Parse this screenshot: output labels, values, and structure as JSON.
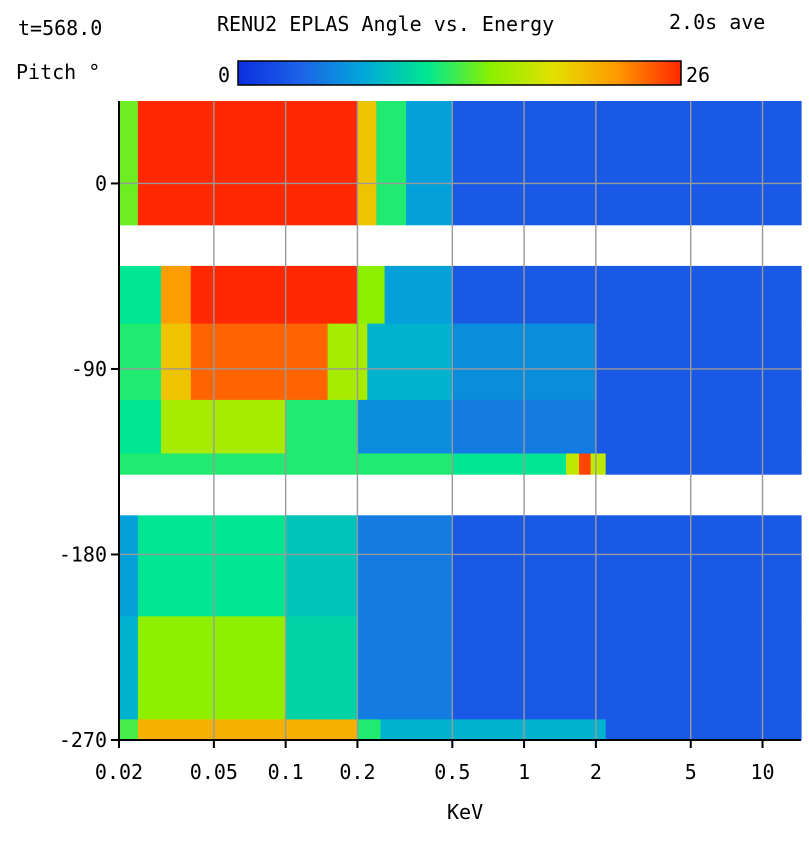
{
  "header": {
    "time": "t=568.0",
    "title": "RENU2 EPLAS Angle vs. Energy",
    "average": "2.0s ave",
    "ylabel": "Pitch °"
  },
  "colorbar": {
    "min_label": "0",
    "max_label": "26",
    "stops": [
      "#0b2ee0",
      "#1d63e8",
      "#00a8d8",
      "#00e890",
      "#8cf000",
      "#e4e000",
      "#ff9800",
      "#ff2800"
    ]
  },
  "chart_data": {
    "type": "heatmap",
    "title": "RENU2 EPLAS Angle vs. Energy",
    "xlabel": "KeV",
    "ylabel": "Pitch °",
    "x_scale": "log",
    "xlim": [
      0.02,
      14.5
    ],
    "ylim": [
      -270,
      40
    ],
    "x_ticks": [
      0.02,
      0.05,
      0.1,
      0.2,
      0.5,
      1,
      2,
      5,
      10
    ],
    "x_tick_labels": [
      "0.02",
      "0.05",
      "0.1",
      "0.2",
      "0.5",
      "1",
      "2",
      "5",
      "10"
    ],
    "y_ticks": [
      0,
      -90,
      -180,
      -270
    ],
    "y_tick_labels": [
      "0",
      "-90",
      "-180",
      "-270"
    ],
    "grid": true,
    "color_range": [
      0,
      26
    ],
    "colormap": "rainbow (blue to red)",
    "gaps": [
      [
        -40,
        -20
      ],
      [
        -161,
        -141
      ]
    ],
    "bands": [
      {
        "pitch_range": [
          -20,
          40
        ],
        "columns": [
          {
            "to_kev": 0.024,
            "value": 14
          },
          {
            "to_kev": 0.2,
            "value": 26
          },
          {
            "to_kev": 0.24,
            "value": 20
          },
          {
            "to_kev": 0.32,
            "value": 12
          },
          {
            "to_kev": 0.5,
            "value": 7
          },
          {
            "to_kev": 14.5,
            "value": 3
          }
        ]
      },
      {
        "pitch_range": [
          -68,
          -40
        ],
        "columns": [
          {
            "to_kev": 0.03,
            "value": 11
          },
          {
            "to_kev": 0.04,
            "value": 22
          },
          {
            "to_kev": 0.2,
            "value": 26
          },
          {
            "to_kev": 0.26,
            "value": 15
          },
          {
            "to_kev": 0.5,
            "value": 7
          },
          {
            "to_kev": 14.5,
            "value": 3
          }
        ]
      },
      {
        "pitch_range": [
          -105,
          -68
        ],
        "columns": [
          {
            "to_kev": 0.03,
            "value": 12
          },
          {
            "to_kev": 0.04,
            "value": 20
          },
          {
            "to_kev": 0.15,
            "value": 24
          },
          {
            "to_kev": 0.22,
            "value": 16
          },
          {
            "to_kev": 0.5,
            "value": 8
          },
          {
            "to_kev": 2.0,
            "value": 6
          },
          {
            "to_kev": 14.5,
            "value": 3
          }
        ]
      },
      {
        "pitch_range": [
          -131,
          -105
        ],
        "columns": [
          {
            "to_kev": 0.03,
            "value": 11
          },
          {
            "to_kev": 0.1,
            "value": 16
          },
          {
            "to_kev": 0.2,
            "value": 12
          },
          {
            "to_kev": 0.5,
            "value": 6
          },
          {
            "to_kev": 2.0,
            "value": 5
          },
          {
            "to_kev": 14.5,
            "value": 3
          }
        ]
      },
      {
        "pitch_range": [
          -141,
          -131
        ],
        "columns": [
          {
            "to_kev": 0.5,
            "value": 12
          },
          {
            "to_kev": 1.5,
            "value": 11
          },
          {
            "to_kev": 1.7,
            "value": 17
          },
          {
            "to_kev": 1.9,
            "value": 25
          },
          {
            "to_kev": 2.2,
            "value": 17
          },
          {
            "to_kev": 14.5,
            "value": 3
          }
        ]
      },
      {
        "pitch_range": [
          -210,
          -161
        ],
        "columns": [
          {
            "to_kev": 0.024,
            "value": 7
          },
          {
            "to_kev": 0.1,
            "value": 11
          },
          {
            "to_kev": 0.2,
            "value": 9
          },
          {
            "to_kev": 0.5,
            "value": 5
          },
          {
            "to_kev": 14.5,
            "value": 3
          }
        ]
      },
      {
        "pitch_range": [
          -260,
          -210
        ],
        "columns": [
          {
            "to_kev": 0.024,
            "value": 8
          },
          {
            "to_kev": 0.1,
            "value": 15
          },
          {
            "to_kev": 0.2,
            "value": 10
          },
          {
            "to_kev": 0.5,
            "value": 5
          },
          {
            "to_kev": 14.5,
            "value": 3
          }
        ]
      },
      {
        "pitch_range": [
          -270,
          -260
        ],
        "columns": [
          {
            "to_kev": 0.024,
            "value": 13
          },
          {
            "to_kev": 0.2,
            "value": 21
          },
          {
            "to_kev": 0.25,
            "value": 12
          },
          {
            "to_kev": 2.2,
            "value": 8
          },
          {
            "to_kev": 14.5,
            "value": 3
          }
        ]
      }
    ]
  }
}
